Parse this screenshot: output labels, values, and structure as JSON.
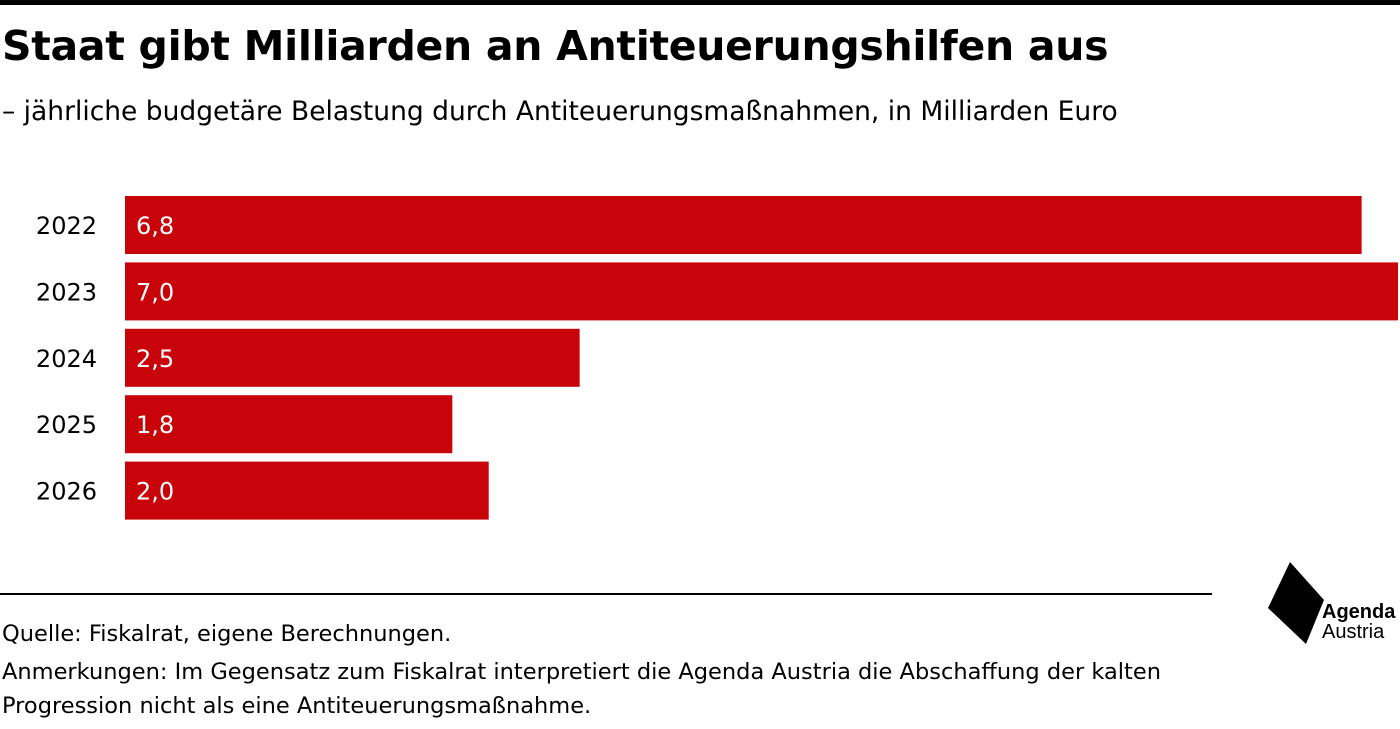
{
  "header": {
    "title": "Staat gibt Milliarden an Antiteuerungshilfen aus",
    "subtitle": "– jährliche budgetäre Belastung durch Antiteuerungsmaßnahmen, in Milliarden Euro"
  },
  "chart_data": {
    "type": "bar",
    "orientation": "horizontal",
    "categories": [
      "2022",
      "2023",
      "2024",
      "2025",
      "2026"
    ],
    "values": [
      6.8,
      7.0,
      2.5,
      1.8,
      2.0
    ],
    "value_labels": [
      "6,8",
      "7,0",
      "2,5",
      "1,8",
      "2,0"
    ],
    "xlim": [
      0,
      7.0
    ],
    "grid": false,
    "legend": "none",
    "bar_color": "#c8040a"
  },
  "footer": {
    "source": "Quelle: Fiskalrat, eigene Berechnungen.",
    "notes": "Anmerkungen: Im Gegensatz zum Fiskalrat interpretiert die Agenda Austria die Abschaffung der kalten Progression nicht als eine Antiteuerungsmaßnahme."
  },
  "logo": {
    "line1": "Agenda",
    "line2": "Austria"
  }
}
